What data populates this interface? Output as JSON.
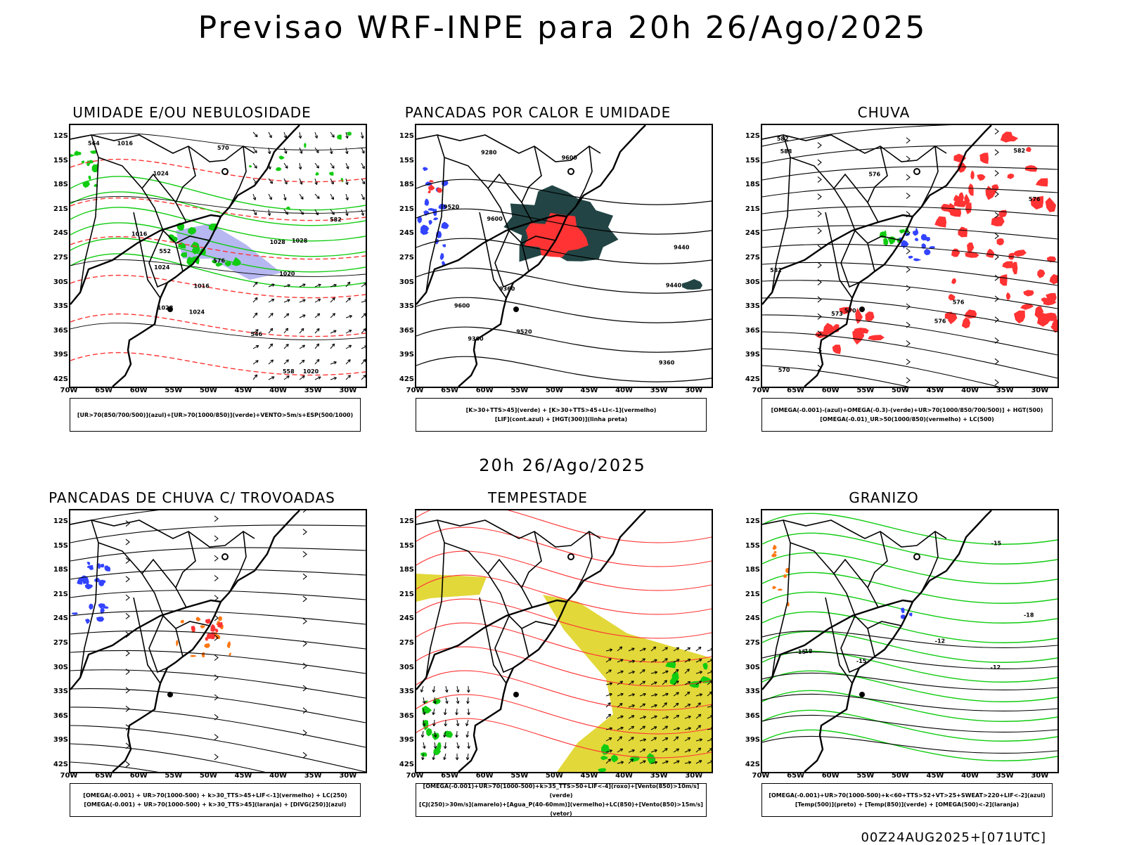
{
  "title": "Previsao WRF-INPE  para 20h 26/Ago/2025",
  "subtitle": "20h 26/Ago/2025",
  "footer": "00Z24AUG2025+[071UTC]",
  "axes": {
    "lat_labels": [
      "12S",
      "15S",
      "18S",
      "21S",
      "24S",
      "27S",
      "30S",
      "33S",
      "36S",
      "39S",
      "42S"
    ],
    "lon_labels": [
      "70W",
      "65W",
      "60W",
      "55W",
      "50W",
      "45W",
      "40W",
      "35W",
      "30W"
    ]
  },
  "colors": {
    "blue": "#3344ff",
    "lavender": "#aaaaee",
    "green": "#11cc11",
    "red": "#ff3333",
    "orange": "#ff7711",
    "yellow": "#e2d83a",
    "darkteal": "#224444"
  },
  "panels": [
    {
      "title": "UMIDADE E/OU NEBULOSIDADE",
      "legend": [
        "[UR>70(850/700/500)](azul)+[UR>70(1000/850)](verde)+VENTO>5m/s+ESP(500/1000)"
      ],
      "contour_labels": [
        "1016",
        "1016",
        "1016",
        "1020",
        "1020",
        "1024",
        "1024",
        "1024",
        "1028",
        "1028",
        "1028",
        "570",
        "564",
        "558",
        "552",
        "546",
        "576",
        "582"
      ]
    },
    {
      "title": "PANCADAS POR CALOR E UMIDADE",
      "legend": [
        "[K>30+TTS>45](verde) + [K>30+TTS>45+LI<-1](vermelho)",
        "[LIF](cont.azul) + [HGT(300)](linha preta)"
      ],
      "contour_labels": [
        "9600",
        "9600",
        "9520",
        "9520",
        "9440",
        "9440",
        "9360",
        "9360",
        "9360",
        "9280",
        "9600"
      ]
    },
    {
      "title": "CHUVA",
      "legend": [
        "[OMEGA(-0.001)-(azul)+OMEGA(-0.3)-(verde)+UR>70(1000/850/700/500)] + HGT(500)",
        "[OMEGA(-0.01)_UR>50(1000/850)(vermelho) + LC(500)"
      ],
      "contour_labels": [
        "588",
        "582",
        "582",
        "582",
        "576",
        "576",
        "576",
        "570",
        "570",
        "576",
        "573"
      ]
    },
    {
      "title": "PANCADAS DE CHUVA C/ TROVOADAS",
      "legend": [
        "[OMEGA(-0.001) + UR>70(1000-500) + k>30_TTS>45+LIF<-1](vermelho) + LC(250)",
        "[OMEGA(-0.001) + UR>70(1000-500) + k>30_TTS>45](laranja) + [DIVG(250)](azul)"
      ],
      "contour_labels": []
    },
    {
      "title": "TEMPESTADE",
      "legend": [
        "[OMEGA(-0.001)+UR>70(1000-500)+k>35_TTS>50+LIF<-4](roxo)+[Vento(850)>10m/s](verde)",
        "[CJ(250)>30m/s](amarelo)+[Agua_P(40-60mm)](vermelho)+LC(850)+[Vento(850)>15m/s](vetor)"
      ],
      "contour_labels": []
    },
    {
      "title": "GRANIZO",
      "legend": [
        "[OMEGA(-0.001)+UR>70(1000-500)+k<60+TTS>52+VT>25+SWEAT>220+LIF<-2](azul)",
        "[Temp(500)](preto) + [Temp(850)](verde) + [OMEGA(500)<-2](laranja)"
      ],
      "contour_labels": [
        "-12",
        "-12",
        "-15",
        "-15",
        "-18",
        "-18",
        "-15"
      ]
    }
  ]
}
